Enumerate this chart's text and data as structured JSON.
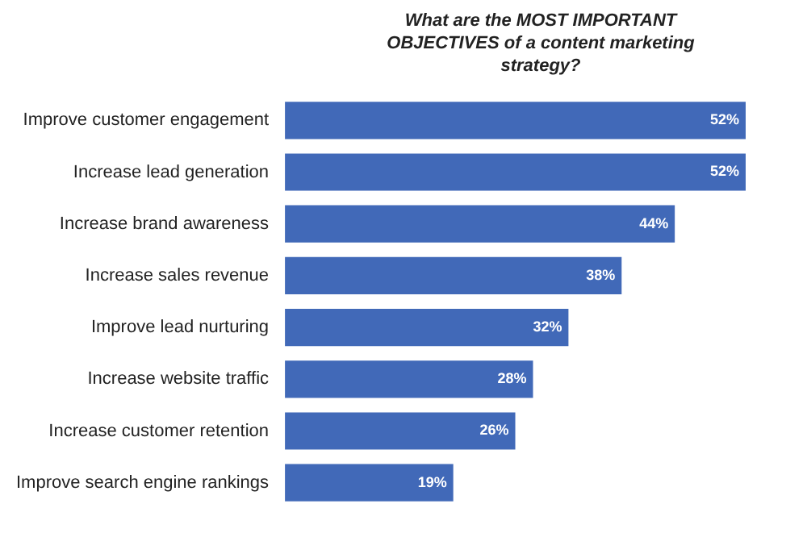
{
  "chart_data": {
    "type": "bar",
    "orientation": "horizontal",
    "title": "What are the MOST IMPORTANT OBJECTIVES of a content marketing strategy?",
    "categories": [
      "Improve customer engagement",
      "Increase lead generation",
      "Increase brand awareness",
      "Increase sales revenue",
      "Improve lead nurturing",
      "Increase website traffic",
      "Increase customer retention",
      "Improve search engine rankings"
    ],
    "values": [
      52,
      52,
      44,
      38,
      32,
      28,
      26,
      19
    ],
    "color": "#4169b8",
    "value_labels": [
      "52%",
      "52%",
      "44%",
      "38%",
      "32%",
      "28%",
      "26%",
      "19%"
    ]
  }
}
